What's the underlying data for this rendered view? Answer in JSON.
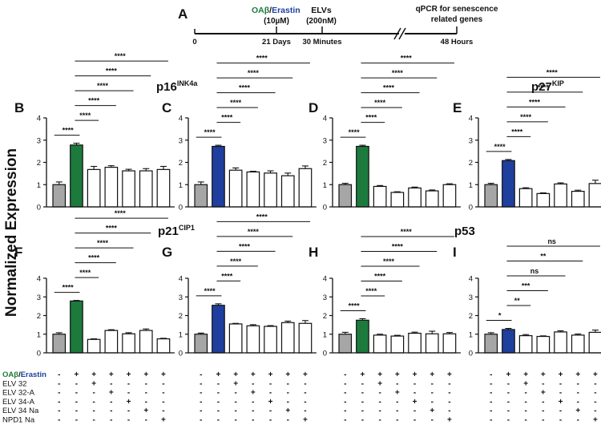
{
  "timeline": {
    "letter": "A",
    "oab_label": "OAβ",
    "slash": "/",
    "erastin_label": "Erastin",
    "oab_dose": "(10µM)",
    "elvs_label": "ELVs",
    "elvs_dose": "(200nM)",
    "qpcr_line1": "qPCR for senescence",
    "qpcr_line2": "related genes",
    "t0": "0",
    "t1": "21 Days",
    "t2": "30 Minutes",
    "t3": "48 Hours"
  },
  "y_axis_title": "Normalized Expression",
  "gene_titles": {
    "p16": {
      "base": "p16",
      "sup": "INK4a"
    },
    "p27": {
      "base": "p27",
      "sup": "KIP"
    },
    "p21": {
      "base": "p21",
      "sup": "CIP1"
    },
    "p53": {
      "base": "p53",
      "sup": ""
    }
  },
  "colors": {
    "control": "#a6a6a6",
    "oab": "#1d7a3d",
    "erastin": "#1f3f9f",
    "treatment": "#ffffff",
    "oab_text": "#1d7a3d",
    "erastin_text": "#1f3f9f"
  },
  "treatment_table": {
    "rows": [
      {
        "label": "OAβ/Erastin",
        "signs": [
          "-",
          "+",
          "+",
          "+",
          "+",
          "+",
          "+"
        ]
      },
      {
        "label": "ELV 32",
        "signs": [
          "-",
          "-",
          "+",
          "-",
          "-",
          "-",
          "-"
        ]
      },
      {
        "label": "ELV 32-A",
        "signs": [
          "-",
          "-",
          "-",
          "+",
          "-",
          "-",
          "-"
        ]
      },
      {
        "label": "ELV 34-A",
        "signs": [
          "-",
          "-",
          "-",
          "-",
          "+",
          "-",
          "-"
        ]
      },
      {
        "label": "ELV 34 Na",
        "signs": [
          "-",
          "-",
          "-",
          "-",
          "-",
          "+",
          "-"
        ]
      },
      {
        "label": "NPD1 Na",
        "signs": [
          "-",
          "-",
          "-",
          "-",
          "-",
          "-",
          "+"
        ]
      }
    ]
  },
  "chart_data": [
    {
      "panel": "B",
      "gene": "p16INK4a",
      "type": "bar",
      "stimulus": "OAβ",
      "ylim": [
        0,
        4
      ],
      "yticks": [
        "0",
        "1",
        "2",
        "3",
        "4"
      ],
      "values": [
        1.0,
        2.78,
        1.68,
        1.78,
        1.62,
        1.62,
        1.68
      ],
      "errors": [
        0.12,
        0.08,
        0.14,
        0.07,
        0.07,
        0.1,
        0.14
      ],
      "comparisons": [
        {
          "from": 0,
          "to": 1,
          "label": "****"
        },
        {
          "from": 1,
          "to": 2,
          "label": "****"
        },
        {
          "from": 1,
          "to": 3,
          "label": "****"
        },
        {
          "from": 1,
          "to": 4,
          "label": "****"
        },
        {
          "from": 1,
          "to": 5,
          "label": "****"
        },
        {
          "from": 1,
          "to": 6,
          "label": "****"
        }
      ]
    },
    {
      "panel": "C",
      "gene": "p16INK4a",
      "type": "bar",
      "stimulus": "Erastin",
      "ylim": [
        0,
        4
      ],
      "yticks": [
        "0",
        "1",
        "2",
        "3",
        "4"
      ],
      "values": [
        1.0,
        2.72,
        1.65,
        1.57,
        1.52,
        1.4,
        1.72
      ],
      "errors": [
        0.12,
        0.05,
        0.1,
        0.03,
        0.1,
        0.12,
        0.12
      ],
      "comparisons": [
        {
          "from": 0,
          "to": 1,
          "label": "****"
        },
        {
          "from": 1,
          "to": 2,
          "label": "****"
        },
        {
          "from": 1,
          "to": 3,
          "label": "****"
        },
        {
          "from": 1,
          "to": 4,
          "label": "****"
        },
        {
          "from": 1,
          "to": 5,
          "label": "****"
        },
        {
          "from": 1,
          "to": 6,
          "label": "****"
        }
      ]
    },
    {
      "panel": "D",
      "gene": "p27KIP",
      "type": "bar",
      "stimulus": "OAβ",
      "ylim": [
        0,
        4
      ],
      "yticks": [
        "0",
        "1",
        "2",
        "3",
        "4"
      ],
      "values": [
        1.0,
        2.72,
        0.92,
        0.65,
        0.85,
        0.72,
        1.0
      ],
      "errors": [
        0.06,
        0.05,
        0.04,
        0.03,
        0.04,
        0.04,
        0.04
      ],
      "comparisons": [
        {
          "from": 0,
          "to": 1,
          "label": "****"
        },
        {
          "from": 1,
          "to": 2,
          "label": "****"
        },
        {
          "from": 1,
          "to": 3,
          "label": "****"
        },
        {
          "from": 1,
          "to": 4,
          "label": "****"
        },
        {
          "from": 1,
          "to": 5,
          "label": "****"
        },
        {
          "from": 1,
          "to": 6,
          "label": "****"
        }
      ]
    },
    {
      "panel": "E",
      "gene": "p27KIP",
      "type": "bar",
      "stimulus": "Erastin",
      "ylim": [
        0,
        4
      ],
      "yticks": [
        "0",
        "1",
        "2",
        "3",
        "4"
      ],
      "values": [
        1.0,
        2.08,
        0.82,
        0.6,
        1.03,
        0.7,
        1.05
      ],
      "errors": [
        0.06,
        0.05,
        0.04,
        0.03,
        0.05,
        0.05,
        0.15
      ],
      "comparisons": [
        {
          "from": 0,
          "to": 1,
          "label": "****"
        },
        {
          "from": 1,
          "to": 2,
          "label": "****"
        },
        {
          "from": 1,
          "to": 3,
          "label": "****"
        },
        {
          "from": 1,
          "to": 4,
          "label": "****"
        },
        {
          "from": 1,
          "to": 5,
          "label": "****"
        },
        {
          "from": 1,
          "to": 6,
          "label": "****"
        }
      ]
    },
    {
      "panel": "F",
      "gene": "p21CIP1",
      "type": "bar",
      "stimulus": "OAβ",
      "ylim": [
        0,
        4
      ],
      "yticks": [
        "0",
        "1",
        "2",
        "3",
        "4"
      ],
      "values": [
        1.0,
        2.78,
        0.72,
        1.2,
        1.02,
        1.2,
        0.75
      ],
      "errors": [
        0.08,
        0.03,
        0.03,
        0.04,
        0.06,
        0.08,
        0.03
      ],
      "comparisons": [
        {
          "from": 0,
          "to": 1,
          "label": "****"
        },
        {
          "from": 1,
          "to": 2,
          "label": "****"
        },
        {
          "from": 1,
          "to": 3,
          "label": "****"
        },
        {
          "from": 1,
          "to": 4,
          "label": "****"
        },
        {
          "from": 1,
          "to": 5,
          "label": "****"
        },
        {
          "from": 1,
          "to": 6,
          "label": "****"
        }
      ]
    },
    {
      "panel": "G",
      "gene": "p21CIP1",
      "type": "bar",
      "stimulus": "Erastin",
      "ylim": [
        0,
        4
      ],
      "yticks": [
        "0",
        "1",
        "2",
        "3",
        "4"
      ],
      "values": [
        1.0,
        2.55,
        1.55,
        1.45,
        1.42,
        1.62,
        1.58
      ],
      "errors": [
        0.06,
        0.08,
        0.03,
        0.06,
        0.04,
        0.08,
        0.15
      ],
      "comparisons": [
        {
          "from": 0,
          "to": 1,
          "label": "****"
        },
        {
          "from": 1,
          "to": 2,
          "label": "****"
        },
        {
          "from": 1,
          "to": 3,
          "label": "****"
        },
        {
          "from": 1,
          "to": 4,
          "label": "****"
        },
        {
          "from": 1,
          "to": 5,
          "label": "****"
        },
        {
          "from": 1,
          "to": 6,
          "label": "****"
        }
      ]
    },
    {
      "panel": "H",
      "gene": "p53",
      "type": "bar",
      "stimulus": "OAβ",
      "ylim": [
        0,
        4
      ],
      "yticks": [
        "0",
        "1",
        "2",
        "3",
        "4"
      ],
      "values": [
        1.0,
        1.75,
        0.95,
        0.9,
        1.05,
        1.02,
        1.02
      ],
      "errors": [
        0.1,
        0.08,
        0.05,
        0.04,
        0.06,
        0.14,
        0.07
      ],
      "comparisons": [
        {
          "from": 0,
          "to": 1,
          "label": "****"
        },
        {
          "from": 1,
          "to": 2,
          "label": "****"
        },
        {
          "from": 1,
          "to": 3,
          "label": "****"
        },
        {
          "from": 1,
          "to": 4,
          "label": "****"
        },
        {
          "from": 1,
          "to": 5,
          "label": "****"
        },
        {
          "from": 1,
          "to": 6,
          "label": "****"
        }
      ]
    },
    {
      "panel": "I",
      "gene": "p53",
      "type": "bar",
      "stimulus": "Erastin",
      "ylim": [
        0,
        4
      ],
      "yticks": [
        "0",
        "1",
        "2",
        "3",
        "4"
      ],
      "values": [
        1.0,
        1.25,
        0.92,
        0.88,
        1.12,
        0.95,
        1.1
      ],
      "errors": [
        0.08,
        0.06,
        0.06,
        0.03,
        0.06,
        0.06,
        0.12
      ],
      "comparisons": [
        {
          "from": 0,
          "to": 1,
          "label": "*"
        },
        {
          "from": 1,
          "to": 2,
          "label": "**"
        },
        {
          "from": 1,
          "to": 3,
          "label": "***"
        },
        {
          "from": 1,
          "to": 4,
          "label": "ns"
        },
        {
          "from": 1,
          "to": 5,
          "label": "**"
        },
        {
          "from": 1,
          "to": 6,
          "label": "ns"
        }
      ]
    }
  ]
}
